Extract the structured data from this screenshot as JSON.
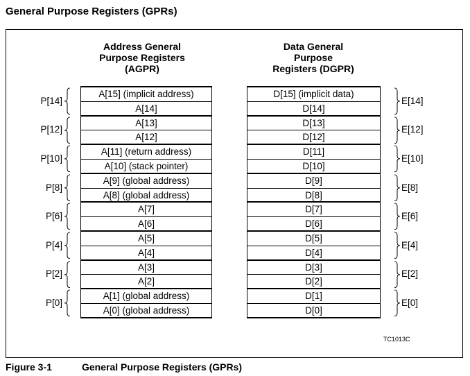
{
  "title": "General Purpose Registers (GPRs)",
  "agpr_heading": [
    "Address General",
    "Purpose Registers",
    "(AGPR)"
  ],
  "dgpr_heading": [
    "Data General",
    "Purpose",
    "Registers (DGPR)"
  ],
  "agpr_registers": [
    "A[15] (implicit address)",
    "A[14]",
    "A[13]",
    "A[12]",
    "A[11] (return address)",
    "A[10] (stack pointer)",
    "A[9] (global address)",
    "A[8] (global address)",
    "A[7]",
    "A[6]",
    "A[5]",
    "A[4]",
    "A[3]",
    "A[2]",
    "A[1] (global address)",
    "A[0] (global address)"
  ],
  "dgpr_registers": [
    "D[15] (implicit data)",
    "D[14]",
    "D[13]",
    "D[12]",
    "D[11]",
    "D[10]",
    "D[9]",
    "D[8]",
    "D[7]",
    "D[6]",
    "D[5]",
    "D[4]",
    "D[3]",
    "D[2]",
    "D[1]",
    "D[0]"
  ],
  "p_labels": [
    "P[14]",
    "P[12]",
    "P[10]",
    "P[8]",
    "P[6]",
    "P[4]",
    "P[2]",
    "P[0]"
  ],
  "e_labels": [
    "E[14]",
    "E[12]",
    "E[10]",
    "E[8]",
    "E[6]",
    "E[4]",
    "E[2]",
    "E[0]"
  ],
  "figure_code": "TC1013C",
  "caption": {
    "number": "Figure 3-1",
    "text": "General Purpose Registers (GPRs)"
  }
}
